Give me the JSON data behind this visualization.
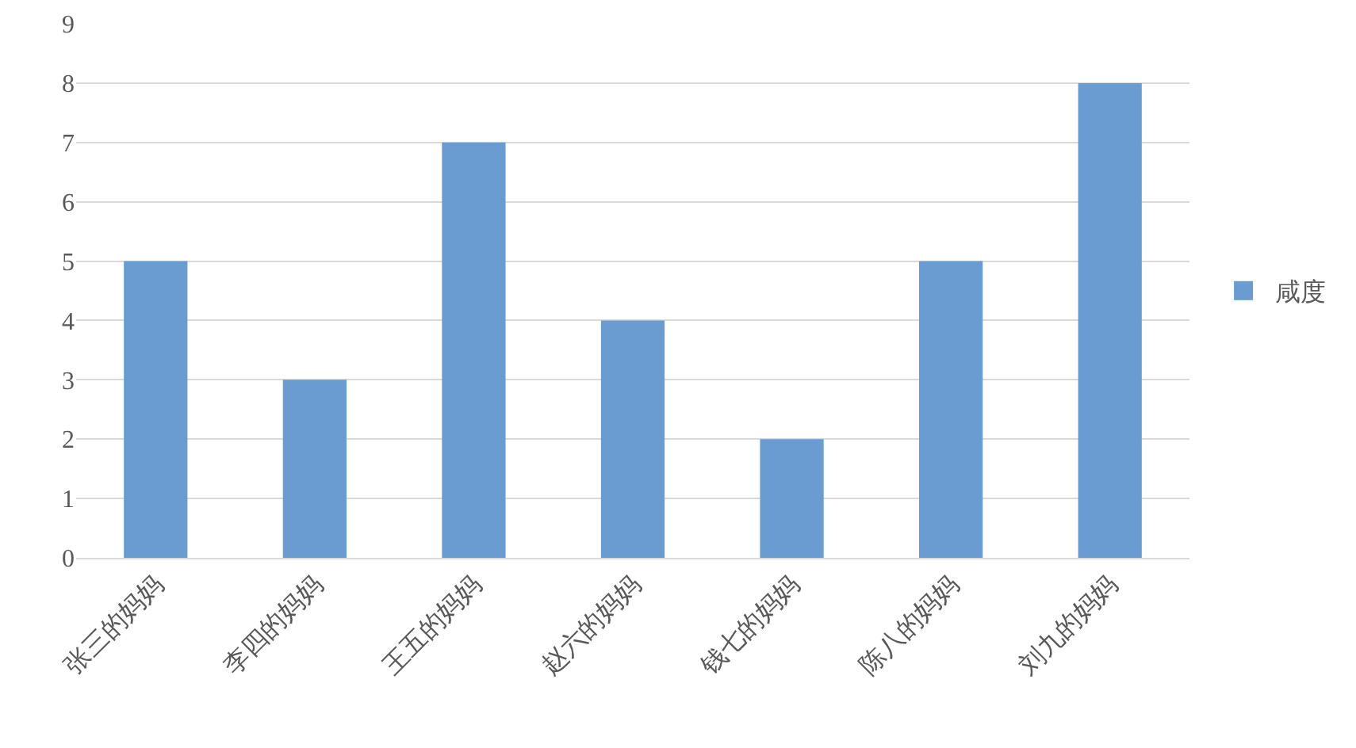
{
  "chart_data": {
    "type": "bar",
    "categories": [
      "张三的妈妈",
      "李四的妈妈",
      "王五的妈妈",
      "赵六的妈妈",
      "钱七的妈妈",
      "陈八的妈妈",
      "刘九的妈妈"
    ],
    "series": [
      {
        "name": "咸度",
        "color": "#6a9bd1",
        "values": [
          5,
          3,
          7,
          4,
          2,
          5,
          8
        ]
      }
    ],
    "ylim": [
      0,
      9
    ],
    "yticks": [
      0,
      1,
      2,
      3,
      4,
      5,
      6,
      7,
      8,
      9
    ],
    "grid": "y",
    "legend": "right"
  }
}
